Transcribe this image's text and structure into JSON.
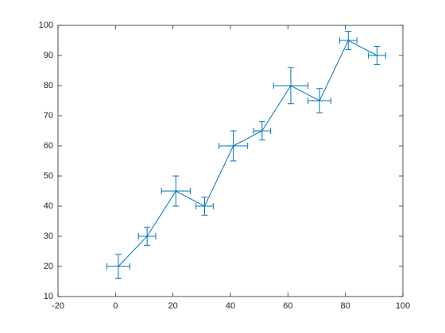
{
  "chart_data": {
    "type": "errorbar",
    "x": [
      1,
      11,
      21,
      31,
      41,
      51,
      61,
      71,
      81,
      91
    ],
    "series": [
      {
        "color": "#0072bd",
        "values": [
          20,
          30,
          45,
          40,
          60,
          65,
          80,
          75,
          95,
          90
        ],
        "yerr": [
          4,
          3,
          5,
          3,
          5,
          3,
          6,
          4,
          3,
          3
        ],
        "xerr": [
          4,
          3,
          5,
          3,
          5,
          3,
          6,
          4,
          3,
          3
        ]
      }
    ],
    "xlim": [
      -20,
      100
    ],
    "xticks": [
      -20,
      0,
      20,
      40,
      60,
      80,
      100
    ],
    "ylim": [
      10,
      100
    ],
    "yticks": [
      10,
      20,
      30,
      40,
      50,
      60,
      70,
      80,
      90,
      100
    ],
    "grid": false
  }
}
